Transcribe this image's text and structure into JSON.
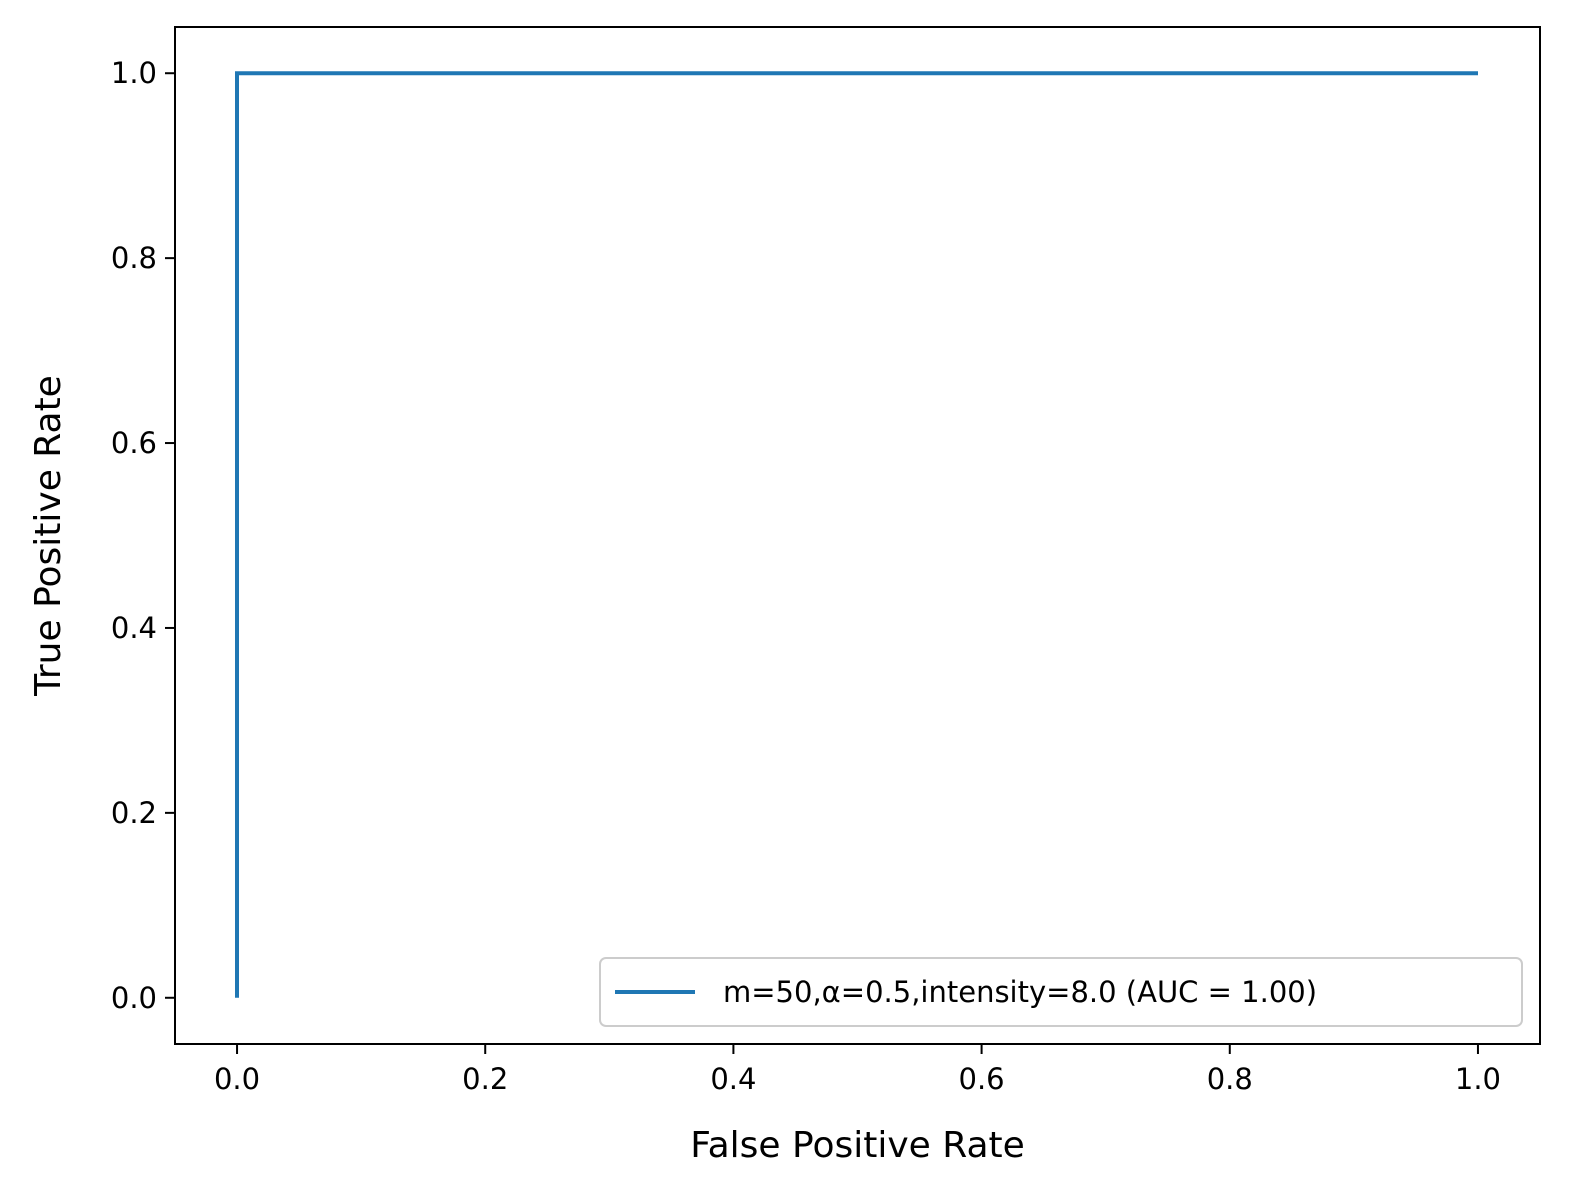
{
  "chart_data": {
    "type": "line",
    "xlabel": "False Positive Rate",
    "ylabel": "True Positive Rate",
    "xlim": [
      -0.05,
      1.05
    ],
    "ylim": [
      -0.05,
      1.05
    ],
    "x_ticks": [
      "0.0",
      "0.2",
      "0.4",
      "0.6",
      "0.8",
      "1.0"
    ],
    "y_ticks": [
      "0.0",
      "0.2",
      "0.4",
      "0.6",
      "0.8",
      "1.0"
    ],
    "grid": false,
    "legend_position": "bottom-right",
    "series": [
      {
        "name": "m=50,α=0.5,intensity=8.0 (AUC = 1.00)",
        "color": "#1f77b4",
        "x": [
          0.0,
          0.0,
          1.0
        ],
        "y": [
          0.0,
          1.0,
          1.0
        ]
      }
    ]
  }
}
